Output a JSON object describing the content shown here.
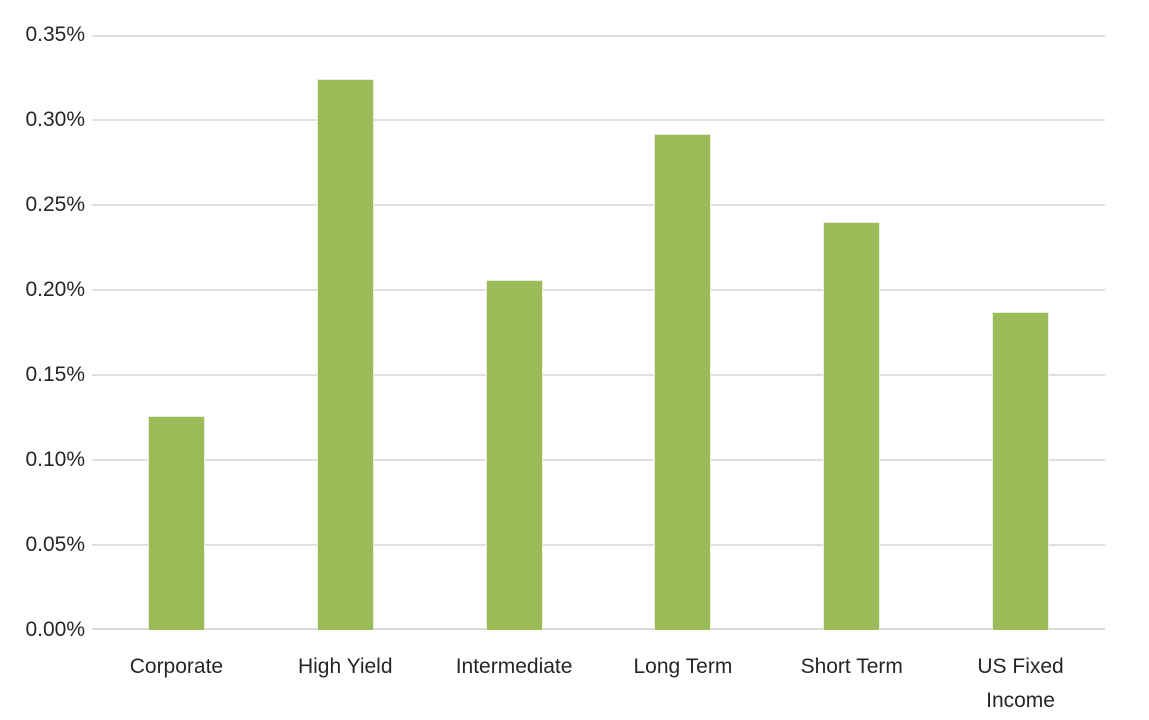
{
  "chart_data": {
    "type": "bar",
    "title": "",
    "xlabel": "",
    "ylabel": "",
    "categories": [
      "Corporate",
      "High Yield",
      "Intermediate",
      "Long Term",
      "Short Term",
      "US Fixed Income"
    ],
    "values": [
      0.126,
      0.324,
      0.206,
      0.292,
      0.24,
      0.187
    ],
    "value_unit": "%",
    "ylim": [
      0,
      0.35
    ],
    "ytick_step": 0.05,
    "ytick_labels": [
      "0.00%",
      "0.05%",
      "0.10%",
      "0.15%",
      "0.20%",
      "0.25%",
      "0.30%",
      "0.35%"
    ],
    "grid": "horizontal-only",
    "legend": "none",
    "colors": {
      "bar_fill": "#9bbb59",
      "bar_edge": "#e7eedb",
      "gridline": "#e0e0e0",
      "axis_line": "#d9d9d9",
      "label_text": "#262626",
      "background": "#ffffff"
    }
  }
}
